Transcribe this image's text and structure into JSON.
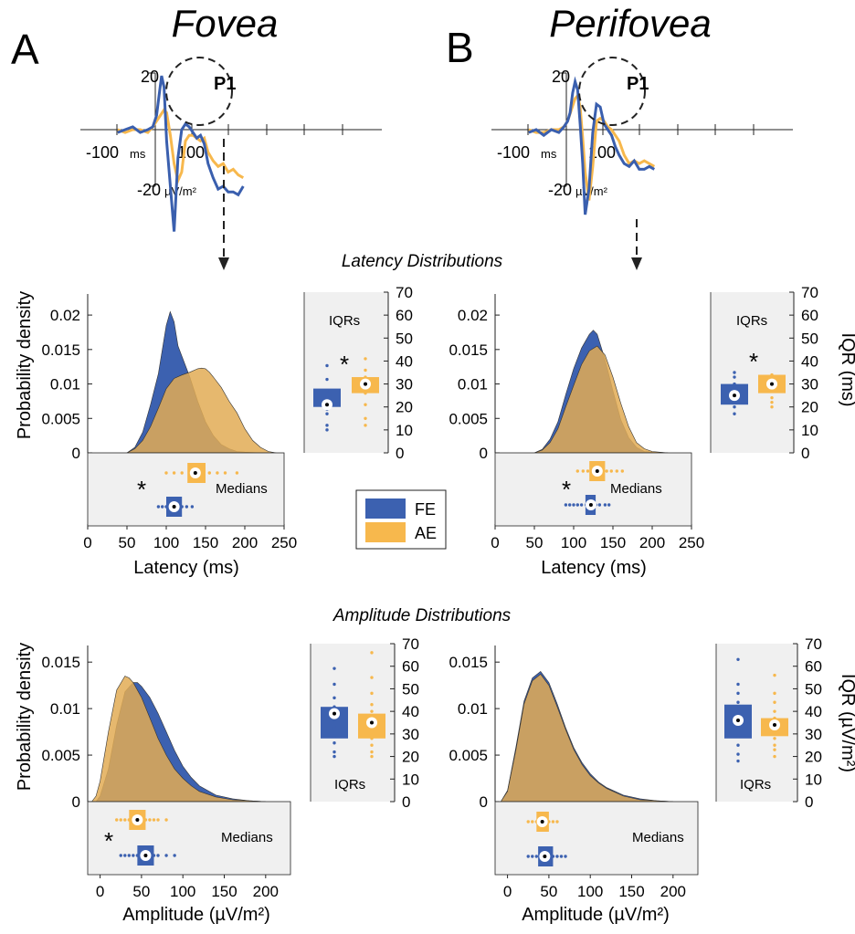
{
  "colors": {
    "fe": "#3a5fae",
    "ae": "#f7b84d",
    "fe_fill": "#3c61b0",
    "ae_fill": "#e2ab55",
    "inset_bg": "#f0f0f0"
  },
  "labels": {
    "panel_a": "A",
    "panel_b": "B",
    "title_fovea": "Fovea",
    "title_perifovea": "Perifovea",
    "p1": "P1",
    "erp_y_top": "20",
    "erp_y_bottom": "-20",
    "erp_x_left": "-100",
    "erp_x_left_unit": "ms",
    "erp_x_right": "100",
    "erp_unit": "µV/m²",
    "latency_section": "Latency Distributions",
    "amplitude_section": "Amplitude Distributions",
    "ylabel_density": "Probability density",
    "latency_xlabel": "Latency (ms)",
    "amplitude_xlabel": "Amplitude (µV/m²)",
    "iqr_right_latency": "IQR (ms)",
    "iqr_right_amplitude": "IQR (µV/m²)",
    "iqrs": "IQRs",
    "medians": "Medians",
    "star": "*"
  },
  "legend": [
    {
      "label": "FE",
      "color": "#3a5fae"
    },
    {
      "label": "AE",
      "color": "#f7b84d"
    }
  ],
  "chart_data": [
    {
      "type": "line",
      "panel": "A",
      "title": "Fovea",
      "xlabel": "ms",
      "ylabel": "µV/m²",
      "ylim": [
        -20,
        20
      ],
      "series": [
        {
          "name": "FE",
          "x": [
            -150,
            -120,
            -90,
            -60,
            -30,
            -10,
            5,
            15,
            25,
            35,
            45,
            60,
            75,
            90,
            105,
            120,
            135,
            150,
            165,
            180,
            195,
            210,
            230,
            250,
            270,
            290,
            310,
            330,
            350
          ],
          "y": [
            -1,
            0,
            1,
            -1,
            0,
            1,
            5,
            12,
            19,
            15,
            -4,
            -20,
            -36,
            -10,
            0,
            2,
            1,
            -1,
            -3,
            -2,
            -5,
            -12,
            -17,
            -21,
            -20,
            -22,
            -22,
            -23,
            -20
          ]
        },
        {
          "name": "AE",
          "x": [
            -150,
            -120,
            -90,
            -60,
            -30,
            -10,
            5,
            20,
            35,
            45,
            60,
            75,
            90,
            105,
            120,
            135,
            150,
            165,
            180,
            195,
            210,
            230,
            250,
            270,
            290,
            310,
            330,
            350
          ],
          "y": [
            0,
            -1,
            0,
            0,
            -1,
            1,
            3,
            5,
            7,
            6,
            -2,
            -12,
            -18,
            -15,
            -4,
            -2,
            -2,
            -3,
            -4,
            -3,
            -8,
            -11,
            -13,
            -12,
            -15,
            -14,
            -16,
            -17
          ]
        }
      ]
    },
    {
      "type": "line",
      "panel": "B",
      "title": "Perifovea",
      "xlabel": "ms",
      "ylabel": "µV/m²",
      "ylim": [
        -20,
        20
      ],
      "series": [
        {
          "name": "FE",
          "x": [
            -150,
            -120,
            -90,
            -60,
            -30,
            -10,
            5,
            15,
            25,
            35,
            45,
            55,
            65,
            75,
            90,
            105,
            120,
            135,
            150,
            165,
            180,
            195,
            210,
            230,
            250,
            270,
            290,
            310,
            330,
            350
          ],
          "y": [
            -1,
            0,
            -2,
            0,
            -1,
            1,
            3,
            6,
            13,
            17,
            14,
            2,
            -12,
            -30,
            -21,
            -1,
            9,
            8,
            2,
            0,
            -2,
            -6,
            -9,
            -12,
            -13,
            -11,
            -14,
            -14,
            -13,
            -14
          ]
        },
        {
          "name": "AE",
          "x": [
            -150,
            -120,
            -90,
            -60,
            -30,
            -10,
            5,
            20,
            35,
            45,
            55,
            65,
            75,
            90,
            105,
            120,
            135,
            150,
            165,
            180,
            195,
            210,
            230,
            250,
            270,
            290,
            310,
            330,
            350
          ],
          "y": [
            0,
            -1,
            -1,
            0,
            0,
            1,
            3,
            7,
            11,
            12,
            8,
            -3,
            -15,
            -25,
            -13,
            3,
            4,
            3,
            1,
            0,
            -2,
            -4,
            -9,
            -12,
            -11,
            -12,
            -11,
            -12,
            -13
          ]
        }
      ]
    },
    {
      "type": "area",
      "panel": "A-latency",
      "xlabel": "Latency (ms)",
      "ylabel": "Probability density",
      "xlim": [
        0,
        250
      ],
      "ylim": [
        0,
        0.022
      ],
      "series": [
        {
          "name": "FE",
          "x": [
            50,
            60,
            70,
            80,
            90,
            100,
            105,
            110,
            115,
            120,
            130,
            140,
            150,
            160,
            170,
            180,
            190,
            200,
            220
          ],
          "y": [
            0,
            0.0008,
            0.003,
            0.007,
            0.0115,
            0.0185,
            0.0205,
            0.019,
            0.0155,
            0.014,
            0.011,
            0.0075,
            0.0045,
            0.0025,
            0.0012,
            0.0006,
            0.0002,
            0.0001,
            0
          ]
        },
        {
          "name": "AE",
          "x": [
            50,
            60,
            70,
            80,
            90,
            100,
            110,
            120,
            130,
            140,
            145,
            150,
            155,
            160,
            170,
            180,
            190,
            200,
            210,
            220,
            230,
            240
          ],
          "y": [
            0,
            0.0006,
            0.0018,
            0.0038,
            0.0065,
            0.0093,
            0.0108,
            0.0113,
            0.0117,
            0.0122,
            0.0123,
            0.0122,
            0.0117,
            0.011,
            0.0095,
            0.0075,
            0.0058,
            0.0035,
            0.0018,
            0.0008,
            0.0002,
            0
          ]
        }
      ]
    },
    {
      "type": "area",
      "panel": "B-latency",
      "xlabel": "Latency (ms)",
      "ylabel": "Probability density",
      "xlim": [
        0,
        250
      ],
      "ylim": [
        0,
        0.022
      ],
      "series": [
        {
          "name": "FE",
          "x": [
            50,
            60,
            70,
            80,
            90,
            100,
            110,
            120,
            125,
            130,
            140,
            150,
            160,
            170,
            180,
            190,
            200,
            220
          ],
          "y": [
            0,
            0.0005,
            0.002,
            0.0045,
            0.0085,
            0.0122,
            0.0152,
            0.0172,
            0.0178,
            0.0172,
            0.0135,
            0.009,
            0.0048,
            0.0022,
            0.0008,
            0.0002,
            0.0001,
            0
          ]
        },
        {
          "name": "AE",
          "x": [
            50,
            60,
            70,
            80,
            90,
            100,
            110,
            120,
            130,
            140,
            150,
            160,
            170,
            180,
            190,
            200,
            220
          ],
          "y": [
            0,
            0.0004,
            0.0015,
            0.0035,
            0.0067,
            0.0098,
            0.0128,
            0.0148,
            0.0155,
            0.0142,
            0.011,
            0.0072,
            0.0038,
            0.0015,
            0.0006,
            0.0002,
            0
          ]
        }
      ]
    },
    {
      "type": "area",
      "panel": "A-amplitude",
      "xlabel": "Amplitude (µV/m²)",
      "ylabel": "Probability density",
      "xlim": [
        -15,
        230
      ],
      "ylim": [
        0,
        0.016
      ],
      "series": [
        {
          "name": "FE",
          "x": [
            -5,
            0,
            10,
            20,
            30,
            40,
            45,
            50,
            60,
            70,
            80,
            90,
            100,
            110,
            120,
            140,
            160,
            180,
            200
          ],
          "y": [
            0,
            0.0006,
            0.0035,
            0.0082,
            0.0118,
            0.0128,
            0.0128,
            0.0124,
            0.0112,
            0.0095,
            0.0075,
            0.0055,
            0.0038,
            0.0026,
            0.0017,
            0.0007,
            0.0003,
            0.0001,
            0
          ]
        },
        {
          "name": "AE",
          "x": [
            -10,
            -5,
            0,
            10,
            20,
            30,
            35,
            40,
            50,
            60,
            70,
            80,
            90,
            100,
            110,
            120,
            140,
            160,
            180,
            200
          ],
          "y": [
            0,
            0.0006,
            0.0022,
            0.0075,
            0.012,
            0.0135,
            0.0133,
            0.0128,
            0.0112,
            0.009,
            0.0068,
            0.005,
            0.0035,
            0.0025,
            0.0017,
            0.0011,
            0.0005,
            0.0002,
            0.0001,
            0
          ]
        }
      ]
    },
    {
      "type": "area",
      "panel": "B-amplitude",
      "xlabel": "Amplitude (µV/m²)",
      "ylabel": "Probability density",
      "xlim": [
        -15,
        230
      ],
      "ylim": [
        0,
        0.016
      ],
      "series": [
        {
          "name": "FE",
          "x": [
            -8,
            0,
            10,
            20,
            30,
            40,
            50,
            60,
            70,
            80,
            90,
            100,
            110,
            120,
            140,
            160,
            180,
            200
          ],
          "y": [
            0,
            0.0012,
            0.0058,
            0.0108,
            0.0133,
            0.014,
            0.0128,
            0.0105,
            0.008,
            0.0058,
            0.0042,
            0.003,
            0.0021,
            0.0015,
            0.0007,
            0.0003,
            0.0001,
            0
          ]
        },
        {
          "name": "AE",
          "x": [
            -8,
            0,
            10,
            20,
            30,
            40,
            50,
            60,
            70,
            80,
            90,
            100,
            110,
            120,
            140,
            160,
            180,
            200
          ],
          "y": [
            0,
            0.0011,
            0.0055,
            0.0105,
            0.013,
            0.0137,
            0.0125,
            0.0102,
            0.0078,
            0.0056,
            0.004,
            0.0028,
            0.002,
            0.0014,
            0.0006,
            0.0002,
            0.0001,
            0
          ]
        }
      ]
    },
    {
      "type": "scatter",
      "panel": "medians",
      "series": [
        {
          "name": "A-latency-FE",
          "median": 110,
          "q1": 100,
          "q3": 120,
          "points": [
            90,
            95,
            100,
            103,
            106,
            110,
            113,
            116,
            120,
            126,
            133
          ]
        },
        {
          "name": "A-latency-AE",
          "median": 137,
          "q1": 127,
          "q3": 150,
          "points": [
            100,
            110,
            120,
            130,
            137,
            145,
            155,
            165,
            175,
            190
          ]
        },
        {
          "name": "B-latency-FE",
          "median": 122,
          "q1": 115,
          "q3": 128,
          "points": [
            90,
            95,
            100,
            105,
            110,
            116,
            122,
            128,
            133,
            140,
            145
          ]
        },
        {
          "name": "B-latency-AE",
          "median": 130,
          "q1": 120,
          "q3": 140,
          "points": [
            105,
            112,
            118,
            124,
            130,
            136,
            142,
            148,
            155,
            162
          ]
        },
        {
          "name": "A-amplitude-FE",
          "median": 55,
          "q1": 45,
          "q3": 65,
          "points": [
            25,
            30,
            35,
            40,
            45,
            50,
            55,
            60,
            65,
            70,
            80,
            90
          ]
        },
        {
          "name": "A-amplitude-AE",
          "median": 45,
          "q1": 35,
          "q3": 55,
          "points": [
            20,
            25,
            30,
            35,
            40,
            45,
            50,
            55,
            60,
            65,
            70,
            80
          ]
        },
        {
          "name": "B-amplitude-FE",
          "median": 45,
          "q1": 37,
          "q3": 55,
          "points": [
            25,
            30,
            35,
            40,
            45,
            50,
            55,
            60,
            65,
            70
          ]
        },
        {
          "name": "B-amplitude-AE",
          "median": 42,
          "q1": 35,
          "q3": 50,
          "points": [
            25,
            30,
            35,
            40,
            45,
            50,
            55,
            60
          ]
        }
      ]
    },
    {
      "type": "scatter",
      "panel": "IQRs",
      "series": [
        {
          "name": "A-latency-FE",
          "median": 21,
          "q1": 20,
          "q3": 28,
          "points": [
            10,
            12,
            17,
            19,
            21,
            24,
            27,
            32,
            38
          ]
        },
        {
          "name": "A-latency-AE",
          "median": 30,
          "q1": 26,
          "q3": 33,
          "points": [
            12,
            15,
            21,
            26,
            30,
            33,
            36,
            41
          ]
        },
        {
          "name": "B-latency-FE",
          "median": 25,
          "q1": 21,
          "q3": 30,
          "points": [
            17,
            20,
            23,
            25,
            28,
            30,
            33,
            35
          ]
        },
        {
          "name": "B-latency-AE",
          "median": 30,
          "q1": 26,
          "q3": 34,
          "points": [
            20,
            22,
            24,
            27,
            30,
            32,
            34
          ]
        },
        {
          "name": "A-amplitude-FE",
          "median": 39,
          "q1": 28,
          "q3": 42,
          "points": [
            20,
            22,
            26,
            29,
            33,
            36,
            39,
            42,
            46,
            52,
            59
          ]
        },
        {
          "name": "A-amplitude-AE",
          "median": 35,
          "q1": 28,
          "q3": 39,
          "points": [
            20,
            22,
            25,
            28,
            31,
            34,
            37,
            40,
            43,
            48,
            55,
            66
          ]
        },
        {
          "name": "B-amplitude-FE",
          "median": 36,
          "q1": 28,
          "q3": 43,
          "points": [
            18,
            21,
            25,
            29,
            33,
            36,
            40,
            44,
            48,
            52,
            63
          ]
        },
        {
          "name": "B-amplitude-AE",
          "median": 34,
          "q1": 29,
          "q3": 37,
          "points": [
            20,
            23,
            25,
            28,
            31,
            34,
            37,
            40,
            44,
            48,
            56
          ]
        }
      ]
    }
  ]
}
